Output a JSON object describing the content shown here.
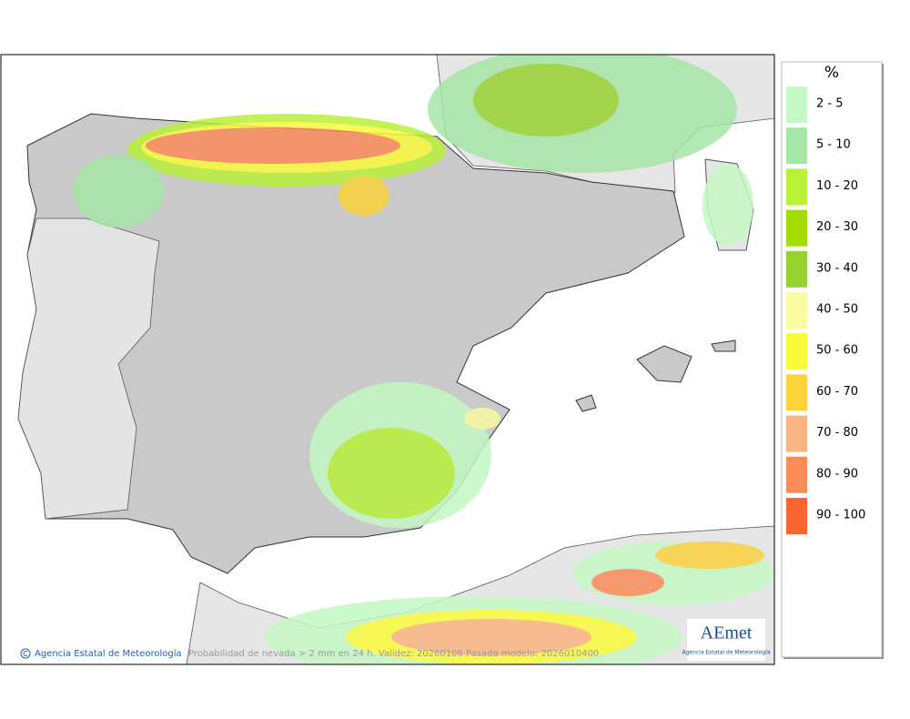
{
  "legend": {
    "unit": "%",
    "items": [
      {
        "label": "2 - 5",
        "color": "#c4f8c4"
      },
      {
        "label": "5 - 10",
        "color": "#a6e6a6"
      },
      {
        "label": "10 - 20",
        "color": "#b8f03a"
      },
      {
        "label": "20 - 30",
        "color": "#a2dc00"
      },
      {
        "label": "30 - 40",
        "color": "#98d232"
      },
      {
        "label": "40 - 50",
        "color": "#fafaa0"
      },
      {
        "label": "50 - 60",
        "color": "#fafa3c"
      },
      {
        "label": "60 - 70",
        "color": "#fad23c"
      },
      {
        "label": "70 - 80",
        "color": "#fab482"
      },
      {
        "label": "80 - 90",
        "color": "#fa8c5a"
      },
      {
        "label": "90 - 100",
        "color": "#fa6432"
      }
    ]
  },
  "footer": {
    "credit": "Agencia Estatal de Meteorología",
    "caption": "Probabilidad de nevada > 2 mm en 24 h. Validez: 20260106 Pasada modelo: 2026010400"
  },
  "logo": {
    "name": "AEmet",
    "subtitle": "Agencia Estatal de Meteorología"
  }
}
